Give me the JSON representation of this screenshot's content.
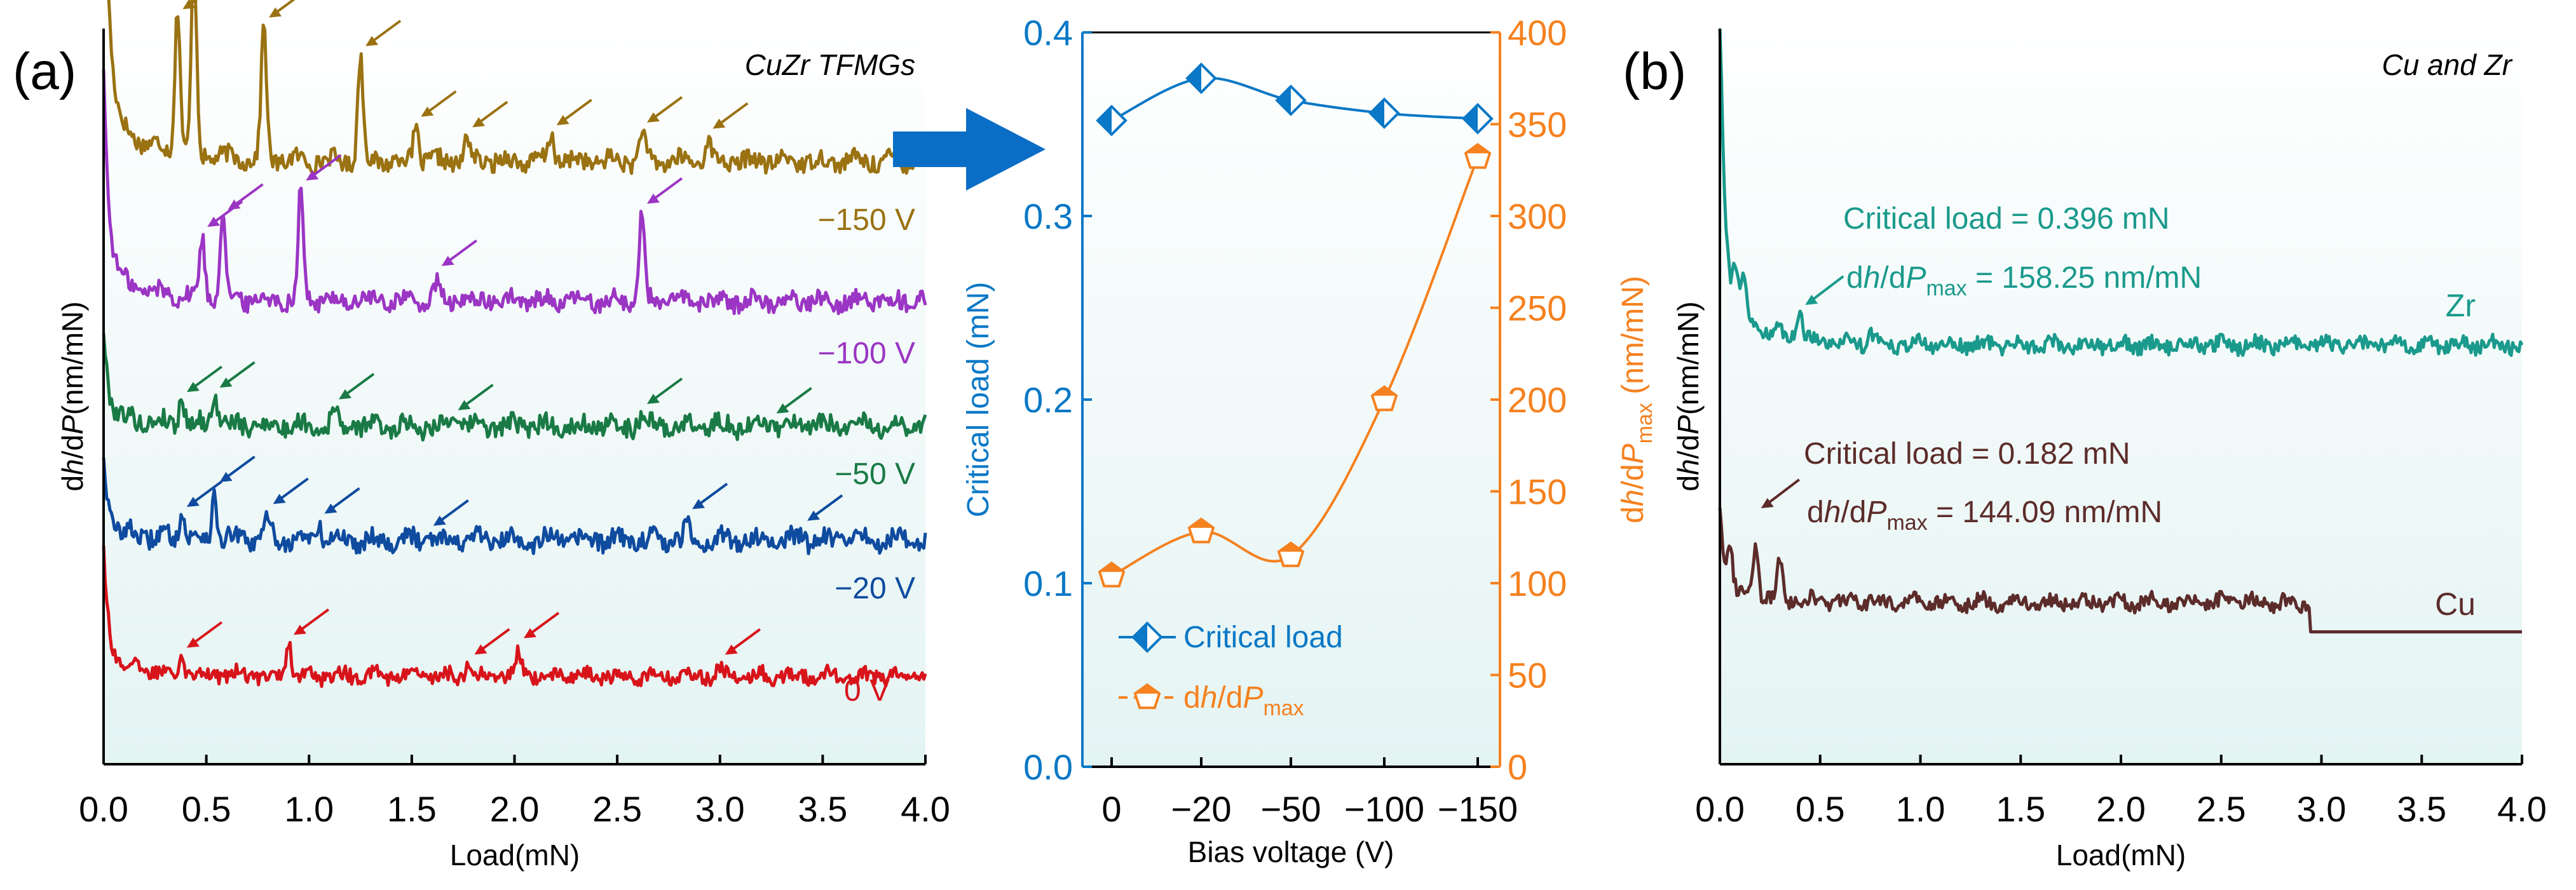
{
  "colors": {
    "s_150": "#9a7212",
    "s_100": "#9b35c4",
    "s_50": "#1a7a45",
    "s_20": "#0f4b9f",
    "s_0": "#d8141b",
    "zr": "#1a9a8c",
    "cu": "#5c2c2a",
    "critical": "#0a78c6",
    "dhdp": "#f5811f",
    "arrow": "#0a6ec6",
    "panelbg": "#eaf6f6"
  },
  "chart_data": [
    {
      "id": "a",
      "type": "line",
      "panel_label": "(a)",
      "title": "CuZr TFMGs",
      "xlabel": "Load(mN)",
      "ylabel": "dh/dP(nm/mN)",
      "ylabel_parts": {
        "d1": "d",
        "h": "h",
        "d2": "/d",
        "P": "P",
        "unit": "(nm/mN)"
      },
      "xlim": [
        0,
        4.0
      ],
      "xticks": [
        "0.0",
        "0.5",
        "1.0",
        "1.5",
        "2.0",
        "2.5",
        "3.0",
        "3.5",
        "4.0"
      ],
      "yticks": "none",
      "series": [
        {
          "name": "-150 V",
          "label": "−150 V",
          "color_key": "s_150",
          "offset": 0.82,
          "initial_spike": 1.3,
          "noise": 0.012,
          "peaks": [
            [
              0.36,
              0.2
            ],
            [
              0.44,
              0.26
            ],
            [
              0.78,
              0.18
            ],
            [
              1.25,
              0.14
            ],
            [
              1.52,
              0.05
            ],
            [
              1.77,
              0.03
            ],
            [
              2.18,
              0.04
            ],
            [
              2.62,
              0.04
            ],
            [
              2.94,
              0.03
            ]
          ],
          "arrows_at": [
            0.36,
            0.44,
            0.78,
            1.25,
            1.52,
            1.77,
            2.18,
            2.62,
            2.94
          ]
        },
        {
          "name": "-100 V",
          "label": "−100 V",
          "color_key": "s_100",
          "offset": 0.63,
          "initial_spike": 0.92,
          "noise": 0.012,
          "peaks": [
            [
              0.48,
              0.08
            ],
            [
              0.58,
              0.12
            ],
            [
              0.96,
              0.15
            ],
            [
              1.62,
              0.02
            ],
            [
              2.62,
              0.12
            ]
          ],
          "arrows_at": [
            0.48,
            0.58,
            0.96,
            1.62,
            2.62
          ]
        },
        {
          "name": "-50 V",
          "label": "−50 V",
          "color_key": "s_50",
          "offset": 0.46,
          "initial_spike": 0.58,
          "noise": 0.013,
          "peaks": [
            [
              0.38,
              0.04
            ],
            [
              0.54,
              0.05
            ],
            [
              1.12,
              0.02
            ],
            [
              1.7,
              0.02
            ],
            [
              2.62,
              0.02
            ],
            [
              3.25,
              0.01
            ]
          ],
          "arrows_at": [
            0.38,
            0.54,
            1.12,
            1.7,
            2.62,
            3.25
          ]
        },
        {
          "name": "-20 V",
          "label": "−20 V",
          "color_key": "s_20",
          "offset": 0.305,
          "initial_spike": 0.41,
          "noise": 0.013,
          "peaks": [
            [
              0.38,
              0.04
            ],
            [
              0.54,
              0.06
            ],
            [
              0.8,
              0.03
            ],
            [
              1.05,
              0.02
            ],
            [
              1.58,
              0.02
            ],
            [
              2.84,
              0.02
            ],
            [
              3.4,
              0.01
            ]
          ],
          "arrows_at": [
            0.38,
            0.54,
            0.8,
            1.05,
            1.58,
            2.84,
            3.4
          ]
        },
        {
          "name": "0 V",
          "label": "0 V",
          "color_key": "s_0",
          "offset": 0.12,
          "initial_spike": 0.28,
          "noise": 0.01,
          "peaks": [
            [
              0.38,
              0.03
            ],
            [
              0.9,
              0.05
            ],
            [
              1.78,
              0.02
            ],
            [
              2.02,
              0.03
            ],
            [
              3.0,
              0.01
            ]
          ],
          "arrows_at": [
            0.38,
            0.9,
            1.78,
            2.02,
            3.0
          ]
        }
      ]
    },
    {
      "id": "mid",
      "type": "line",
      "xlabel": "Bias voltage (V)",
      "categories": [
        "0",
        "−20",
        "−50",
        "−100",
        "−150"
      ],
      "series": [
        {
          "name": "Critical load",
          "axis": "left",
          "values": [
            0.352,
            0.375,
            0.363,
            0.356,
            0.353
          ],
          "color_key": "critical",
          "marker": "half-diamond"
        },
        {
          "name": "dh/dPmax",
          "axis": "right",
          "values": [
            104,
            128,
            115,
            200,
            332
          ],
          "color_key": "dhdp",
          "marker": "half-pentagon"
        }
      ],
      "left_axis": {
        "label": "Critical load (mN)",
        "ylim": [
          0,
          0.4
        ],
        "ticks": [
          "0.0",
          "0.1",
          "0.2",
          "0.3",
          "0.4"
        ]
      },
      "right_axis": {
        "label_parts": {
          "d1": "d",
          "h": "h",
          "d2": "/d",
          "P": "P",
          "sub": "max",
          "unit": " (nm/mN)"
        },
        "ylim": [
          0,
          400
        ],
        "ticks": [
          "0",
          "50",
          "100",
          "150",
          "200",
          "250",
          "300",
          "350",
          "400"
        ]
      },
      "legend": {
        "placement": "bottom-left",
        "critical_label": "Critical load",
        "dhdp_parts": {
          "d1": "d",
          "h": "h",
          "d2": "/d",
          "P": "P",
          "sub": "max"
        }
      }
    },
    {
      "id": "b",
      "type": "line",
      "panel_label": "(b)",
      "title": "Cu and Zr",
      "xlabel": "Load(mN)",
      "ylabel": "dh/dP(nm/mN)",
      "xlim": [
        0,
        4.0
      ],
      "xticks": [
        "0.0",
        "0.5",
        "1.0",
        "1.5",
        "2.0",
        "2.5",
        "3.0",
        "3.5",
        "4.0"
      ],
      "series": [
        {
          "name": "Zr",
          "label": "Zr",
          "color_key": "zr",
          "offset": 0.57,
          "initial_spike": 1.0,
          "noise": 0.01,
          "peaks": [
            [
              0.08,
              0.06
            ],
            [
              0.12,
              0.05
            ],
            [
              0.4,
              0.04
            ],
            [
              0.75,
              0.02
            ]
          ]
        },
        {
          "name": "Cu",
          "label": "Cu",
          "color_key": "cu",
          "offset": 0.22,
          "initial_spike": 0.34,
          "noise": 0.01,
          "peaks": [
            [
              0.05,
              0.06
            ],
            [
              0.18,
              0.07
            ],
            [
              0.3,
              0.05
            ]
          ],
          "drop_at": 2.94,
          "drop_to": 0.18
        }
      ],
      "annotations": {
        "zr": {
          "line1": "Critical load = 0.396 mN",
          "pre": "d",
          "h": "h",
          "mid": "/d",
          "P": "P",
          "sub": "max",
          "value": " = 158.25 nm/mN",
          "at": 0.4
        },
        "cu": {
          "line1": "Critical load = 0.182 mN",
          "pre": "d",
          "h": "h",
          "mid": "/d",
          "P": "P",
          "sub": "max",
          "value": " = 144.09 nm/mN",
          "at": 0.18
        }
      }
    }
  ]
}
